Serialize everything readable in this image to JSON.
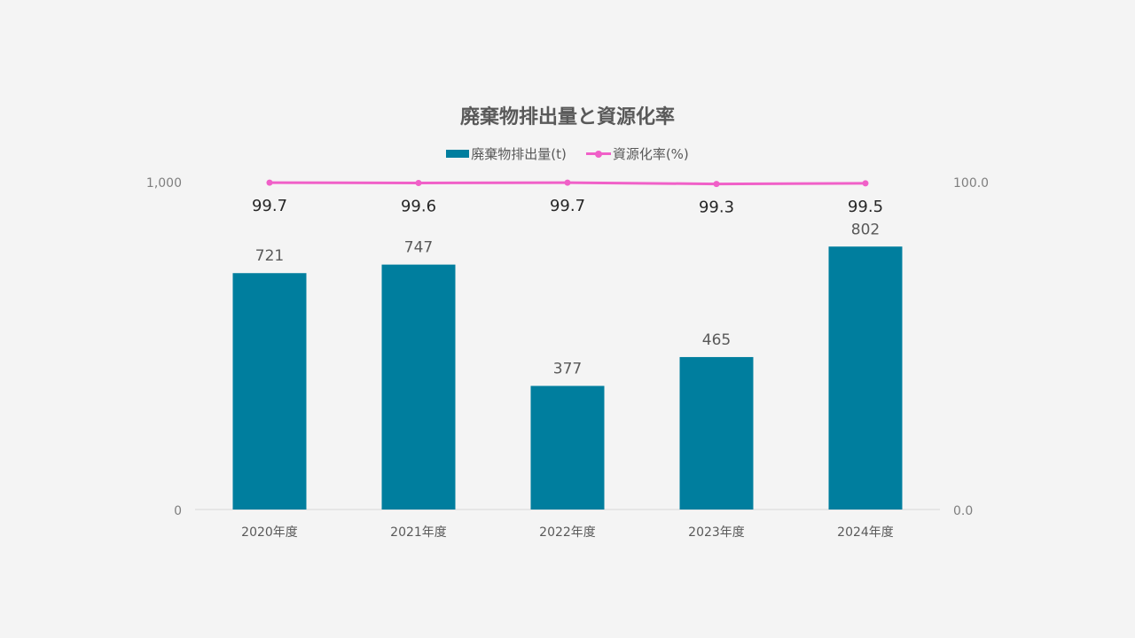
{
  "chart_data": {
    "type": "bar+line",
    "title": "廃棄物排出量と資源化率",
    "categories": [
      "2020年度",
      "2021年度",
      "2022年度",
      "2023年度",
      "2024年度"
    ],
    "series": [
      {
        "name": "廃棄物排出量(t)",
        "type": "bar",
        "axis": "left",
        "color": "#007e9e",
        "values": [
          721,
          747,
          377,
          465,
          802
        ],
        "labels": [
          "721",
          "747",
          "377",
          "465",
          "802"
        ]
      },
      {
        "name": "資源化率(%)",
        "type": "line",
        "axis": "right",
        "color": "#f060c8",
        "values": [
          99.7,
          99.6,
          99.7,
          99.3,
          99.5
        ],
        "labels": [
          "99.7",
          "99.6",
          "99.7",
          "99.3",
          "99.5"
        ]
      }
    ],
    "left_axis": {
      "range": [
        0,
        1000
      ],
      "ticks": [
        "0",
        "1,000"
      ]
    },
    "right_axis": {
      "range": [
        0,
        100
      ],
      "ticks": [
        "0.0",
        "100.0"
      ]
    },
    "legend": "top",
    "grid": false
  }
}
